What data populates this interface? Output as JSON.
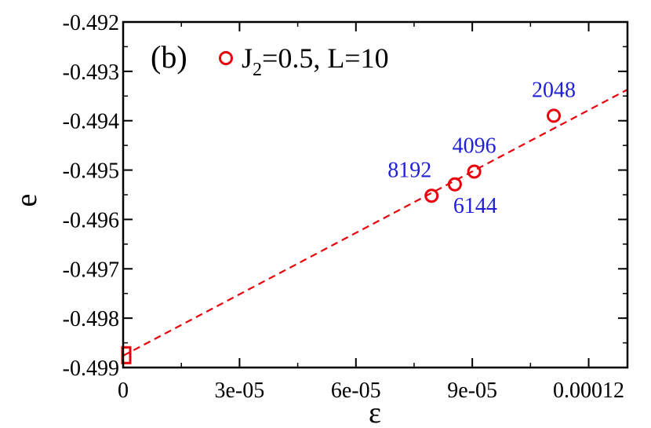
{
  "chart_data": {
    "type": "scatter",
    "panel_label": "(b)",
    "xlabel": "ε",
    "ylabel": "e",
    "xlim": [
      0,
      0.00013
    ],
    "ylim": [
      -0.499,
      -0.492
    ],
    "x_ticks": [
      {
        "value": 0,
        "label": "0"
      },
      {
        "value": 3e-05,
        "label": "3e-05"
      },
      {
        "value": 6e-05,
        "label": "6e-05"
      },
      {
        "value": 9e-05,
        "label": "9e-05"
      },
      {
        "value": 0.00012,
        "label": "0.00012"
      }
    ],
    "y_ticks": [
      {
        "value": -0.492,
        "label": "-0.492"
      },
      {
        "value": -0.493,
        "label": "-0.493"
      },
      {
        "value": -0.494,
        "label": "-0.494"
      },
      {
        "value": -0.495,
        "label": "-0.495"
      },
      {
        "value": -0.496,
        "label": "-0.496"
      },
      {
        "value": -0.497,
        "label": "-0.497"
      },
      {
        "value": -0.498,
        "label": "-0.498"
      },
      {
        "value": -0.499,
        "label": "-0.499"
      }
    ],
    "series": [
      {
        "name": "J2=0.5, L=10",
        "legend_main": "J",
        "legend_sub": "2",
        "legend_rest": "=0.5, L=10",
        "marker": "circle",
        "color": "#e8000b",
        "points": [
          {
            "x": 0.000111,
            "y": -0.4939,
            "label": "2048"
          },
          {
            "x": 9.05e-05,
            "y": -0.49503,
            "label": "4096"
          },
          {
            "x": 8.55e-05,
            "y": -0.49529,
            "label": "6144"
          },
          {
            "x": 7.95e-05,
            "y": -0.49552,
            "label": "8192"
          }
        ]
      }
    ],
    "fit_line": {
      "style": "dashed",
      "color": "#e8000b",
      "x": [
        0,
        0.00013
      ],
      "y": [
        -0.49876,
        -0.49337
      ]
    },
    "extrapolated_point": {
      "x": 0,
      "y": -0.49875,
      "marker": "square",
      "color": "#e8000b"
    },
    "label_color": "#1f1fd6"
  }
}
